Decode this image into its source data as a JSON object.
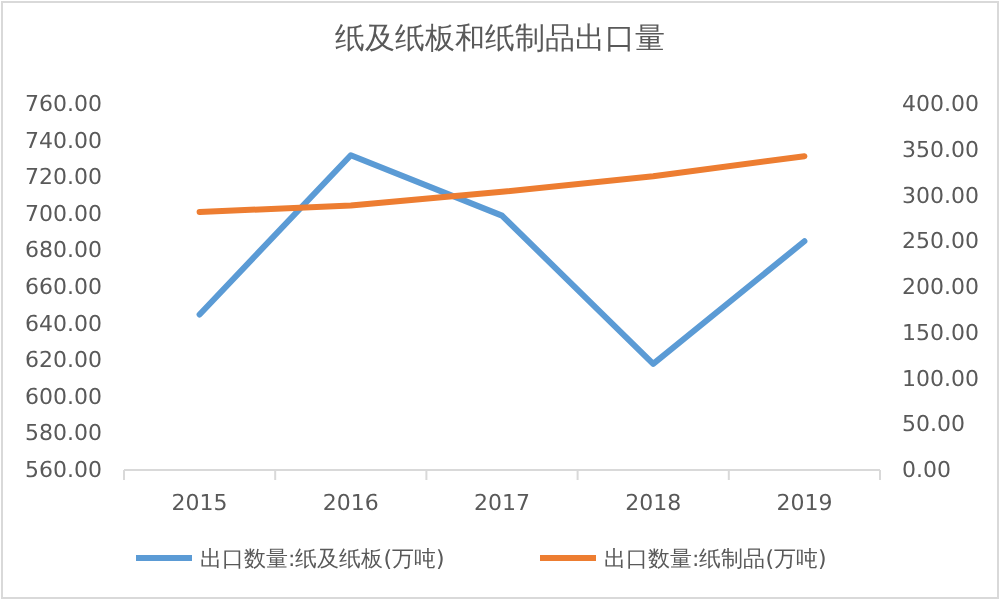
{
  "chart_data": {
    "type": "line",
    "title": "纸及纸板和纸制品出口量",
    "categories": [
      "2015",
      "2016",
      "2017",
      "2018",
      "2019"
    ],
    "series": [
      {
        "name": "出口数量:纸及纸板(万吨)",
        "color": "#5b9bd5",
        "values": [
          645,
          732,
          699,
          618,
          685
        ]
      },
      {
        "name": "出口数量:纸制品(万吨)",
        "color": "#ed7d31",
        "axis": "y2",
        "values": [
          282,
          289,
          304,
          321,
          343
        ]
      }
    ],
    "ylim": [
      560,
      760
    ],
    "yticks": [
      {
        "value": 560,
        "label": "560.00"
      },
      {
        "value": 580,
        "label": "580.00"
      },
      {
        "value": 600,
        "label": "600.00"
      },
      {
        "value": 620,
        "label": "620.00"
      },
      {
        "value": 640,
        "label": "640.00"
      },
      {
        "value": 660,
        "label": "660.00"
      },
      {
        "value": 680,
        "label": "680.00"
      },
      {
        "value": 700,
        "label": "700.00"
      },
      {
        "value": 720,
        "label": "720.00"
      },
      {
        "value": 740,
        "label": "740.00"
      },
      {
        "value": 760,
        "label": "760.00"
      }
    ],
    "y2lim": [
      0,
      400
    ],
    "y2ticks": [
      {
        "value": 0,
        "label": "0.00"
      },
      {
        "value": 50,
        "label": "50.00"
      },
      {
        "value": 100,
        "label": "100.00"
      },
      {
        "value": 150,
        "label": "150.00"
      },
      {
        "value": 200,
        "label": "200.00"
      },
      {
        "value": 250,
        "label": "250.00"
      },
      {
        "value": 300,
        "label": "300.00"
      },
      {
        "value": 350,
        "label": "350.00"
      },
      {
        "value": 400,
        "label": "400.00"
      }
    ],
    "legend": "bottom",
    "marker": "none",
    "line_style": "solid"
  }
}
